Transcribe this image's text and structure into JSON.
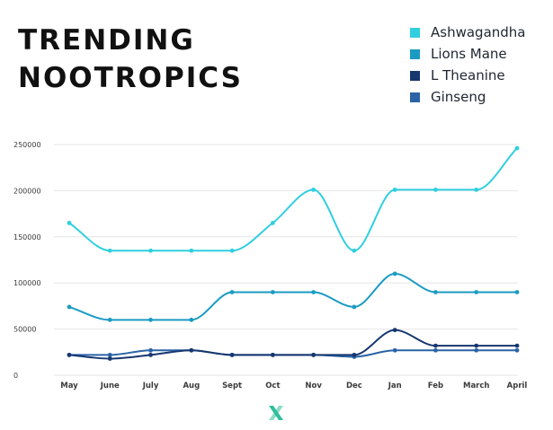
{
  "title_lines": [
    "TRENDING",
    "NOOTROPICS"
  ],
  "chart_data": {
    "type": "line",
    "title": "TRENDING NOOTROPICS",
    "xlabel": "",
    "ylabel": "",
    "categories": [
      "May",
      "June",
      "July",
      "Aug",
      "Sept",
      "Oct",
      "Nov",
      "Dec",
      "Jan",
      "Feb",
      "March",
      "April"
    ],
    "ylim": [
      0,
      250000
    ],
    "yticks": [
      0,
      50000,
      100000,
      150000,
      200000,
      250000
    ],
    "ytick_labels": [
      "0",
      "50000",
      "100000",
      "150000",
      "200000",
      "250000"
    ],
    "grid": "horizontal",
    "legend_position": "top-right",
    "line_style": "smooth",
    "series": [
      {
        "name": "Ashwagandha",
        "color": "#2fcfdf",
        "values": [
          165000,
          135000,
          135000,
          135000,
          135000,
          165000,
          201000,
          135000,
          201000,
          201000,
          201000,
          246000
        ]
      },
      {
        "name": "Lions Mane",
        "color": "#1b9bc2",
        "values": [
          74000,
          60000,
          60000,
          60000,
          90000,
          90000,
          90000,
          74000,
          110000,
          90000,
          90000,
          90000
        ]
      },
      {
        "name": "L Theanine",
        "color": "#16376f",
        "values": [
          22000,
          18000,
          22000,
          27000,
          22000,
          22000,
          22000,
          22000,
          49000,
          32000,
          32000,
          32000
        ]
      },
      {
        "name": "Ginseng",
        "color": "#2a64a6",
        "values": [
          22000,
          22000,
          27000,
          27000,
          22000,
          22000,
          22000,
          20000,
          27000,
          27000,
          27000,
          27000
        ]
      }
    ]
  },
  "logo": {
    "icon": "x-brand-logo-icon",
    "color": "#2dbf9b"
  }
}
